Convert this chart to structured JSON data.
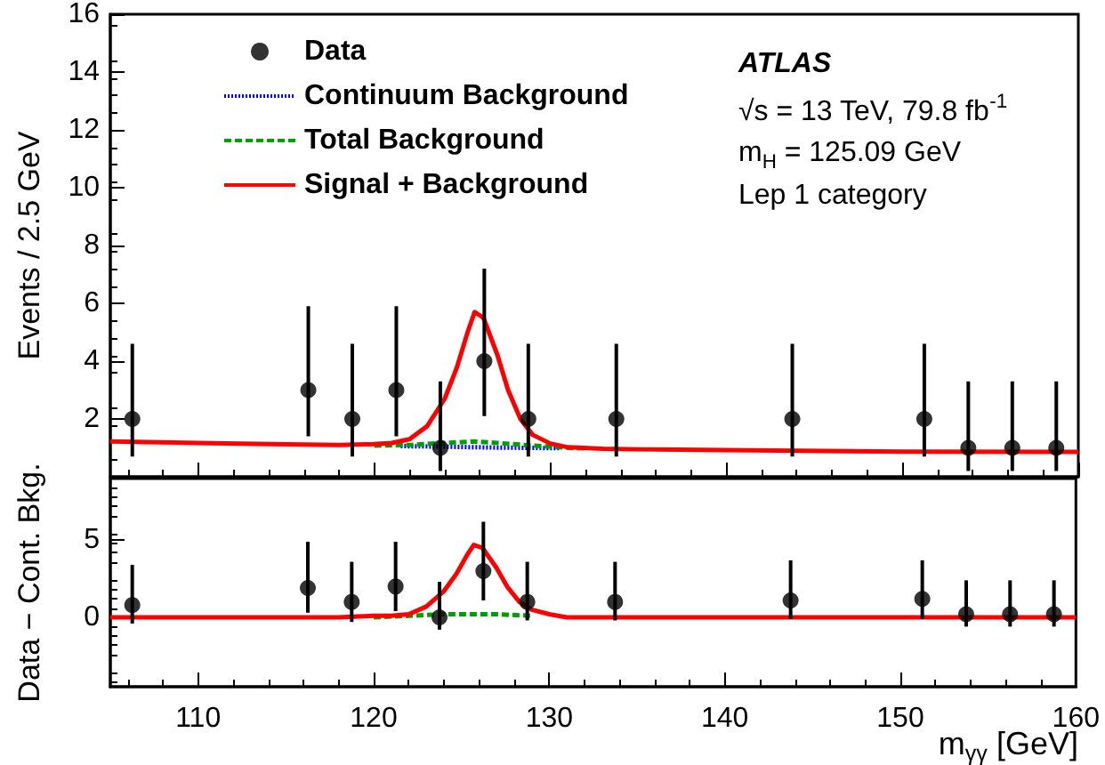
{
  "chart_data": [
    {
      "type": "line",
      "ylabel": "Events / 2.5 GeV",
      "xlim": [
        105,
        160
      ],
      "xticks": [
        110,
        120,
        130,
        140,
        150,
        160
      ],
      "ylim": [
        0,
        16
      ],
      "yticks": [
        2,
        4,
        6,
        8,
        10,
        12,
        14,
        16
      ],
      "tick_labels": "y",
      "legend": "top left",
      "grid": false,
      "annotations": [
        "ATLAS",
        "√s = 13 TeV, 79.8 fb$^{-1}$",
        "m$_{H}$ = 125.09 GeV",
        "Lep 1 category"
      ],
      "series": [
        {
          "name": "Data",
          "type": "scatter",
          "marker": "circle",
          "color": "#000000",
          "x": [
            106.25,
            116.25,
            118.75,
            121.25,
            123.75,
            126.25,
            128.75,
            133.75,
            143.75,
            151.25,
            153.75,
            156.25,
            158.75
          ],
          "values": [
            2,
            3,
            2,
            3,
            1,
            4,
            2,
            2,
            2,
            2,
            1,
            1,
            1
          ],
          "errors": [
            [
              0.7,
              4.6
            ],
            [
              1.4,
              5.9
            ],
            [
              0.7,
              4.6
            ],
            [
              1.4,
              5.9
            ],
            [
              0.2,
              3.3
            ],
            [
              2.1,
              7.2
            ],
            [
              0.7,
              4.6
            ],
            [
              0.7,
              4.6
            ],
            [
              0.7,
              4.6
            ],
            [
              0.7,
              4.6
            ],
            [
              0.2,
              3.3
            ],
            [
              0.2,
              3.3
            ],
            [
              0.2,
              3.3
            ]
          ]
        },
        {
          "name": "Continuum Background",
          "type": "line",
          "line_style": "dotted",
          "color": "#0000ff",
          "x": [
            121.5,
            123,
            125,
            127,
            129,
            130.5
          ],
          "values": [
            1.06,
            1.05,
            1.03,
            1.01,
            1.0,
            0.99
          ]
        },
        {
          "name": "Total Background",
          "type": "line",
          "line_style": "dashed",
          "color": "#00a000",
          "x": [
            120,
            122,
            124,
            125.7,
            127,
            129,
            131,
            132
          ],
          "values": [
            1.08,
            1.1,
            1.17,
            1.22,
            1.17,
            1.08,
            1.0,
            0.98
          ]
        },
        {
          "name": "Signal + Background",
          "type": "line",
          "line_style": "solid",
          "color": "#ff0000",
          "x": [
            105,
            110,
            115,
            118,
            120,
            121,
            122,
            123,
            124,
            124.7,
            125.3,
            125.7,
            126.2,
            127,
            127.6,
            128.3,
            129,
            130,
            131,
            133,
            135,
            140,
            150,
            160
          ],
          "values": [
            1.22,
            1.17,
            1.12,
            1.1,
            1.13,
            1.17,
            1.3,
            1.75,
            2.7,
            3.8,
            5.0,
            5.7,
            5.5,
            4.2,
            3.0,
            2.0,
            1.45,
            1.15,
            1.02,
            0.97,
            0.95,
            0.92,
            0.87,
            0.86
          ]
        }
      ]
    },
    {
      "type": "line",
      "ylabel": "Data − Cont. Bkg.",
      "xlabel": "m$_{γγ}$ [GeV]",
      "xlim": [
        105,
        160
      ],
      "xticks": [
        110,
        120,
        130,
        140,
        150,
        160
      ],
      "ylim": [
        -4.5,
        9
      ],
      "yticks": [
        0,
        5
      ],
      "grid": false,
      "series": [
        {
          "type": "scatter",
          "marker": "circle",
          "color": "#000000",
          "x": [
            106.25,
            116.25,
            118.75,
            121.25,
            123.75,
            126.25,
            128.75,
            133.75,
            143.75,
            151.25,
            153.75,
            156.25,
            158.75
          ],
          "values": [
            0.8,
            1.9,
            1,
            2,
            0,
            3,
            1,
            1,
            1.1,
            1.2,
            0.2,
            0.2,
            0.2
          ],
          "errors": [
            [
              -0.4,
              3.4
            ],
            [
              0.3,
              4.9
            ],
            [
              -0.3,
              3.6
            ],
            [
              0.4,
              4.9
            ],
            [
              -0.8,
              2.3
            ],
            [
              1.1,
              6.2
            ],
            [
              -0.2,
              3.6
            ],
            [
              -0.2,
              3.6
            ],
            [
              -0.1,
              3.7
            ],
            [
              -0.1,
              3.7
            ],
            [
              -0.6,
              2.4
            ],
            [
              -0.6,
              2.4
            ],
            [
              -0.6,
              2.4
            ]
          ]
        },
        {
          "type": "line",
          "line_style": "dashed",
          "color": "#00a000",
          "x": [
            120,
            122,
            124,
            125.7,
            127,
            129
          ],
          "values": [
            0,
            0.1,
            0.2,
            0.2,
            0.2,
            0.1
          ]
        },
        {
          "type": "line",
          "line_style": "solid",
          "color": "#ff0000",
          "x": [
            105,
            118,
            120,
            121,
            122,
            123,
            124,
            124.7,
            125.3,
            125.7,
            126.2,
            127,
            127.6,
            128.3,
            129,
            130,
            131,
            133,
            160
          ],
          "values": [
            0,
            0,
            0.1,
            0.1,
            0.2,
            0.7,
            1.7,
            2.8,
            4,
            4.7,
            4.5,
            3.2,
            2,
            1,
            0.5,
            0.2,
            0,
            0,
            0
          ]
        }
      ]
    }
  ]
}
